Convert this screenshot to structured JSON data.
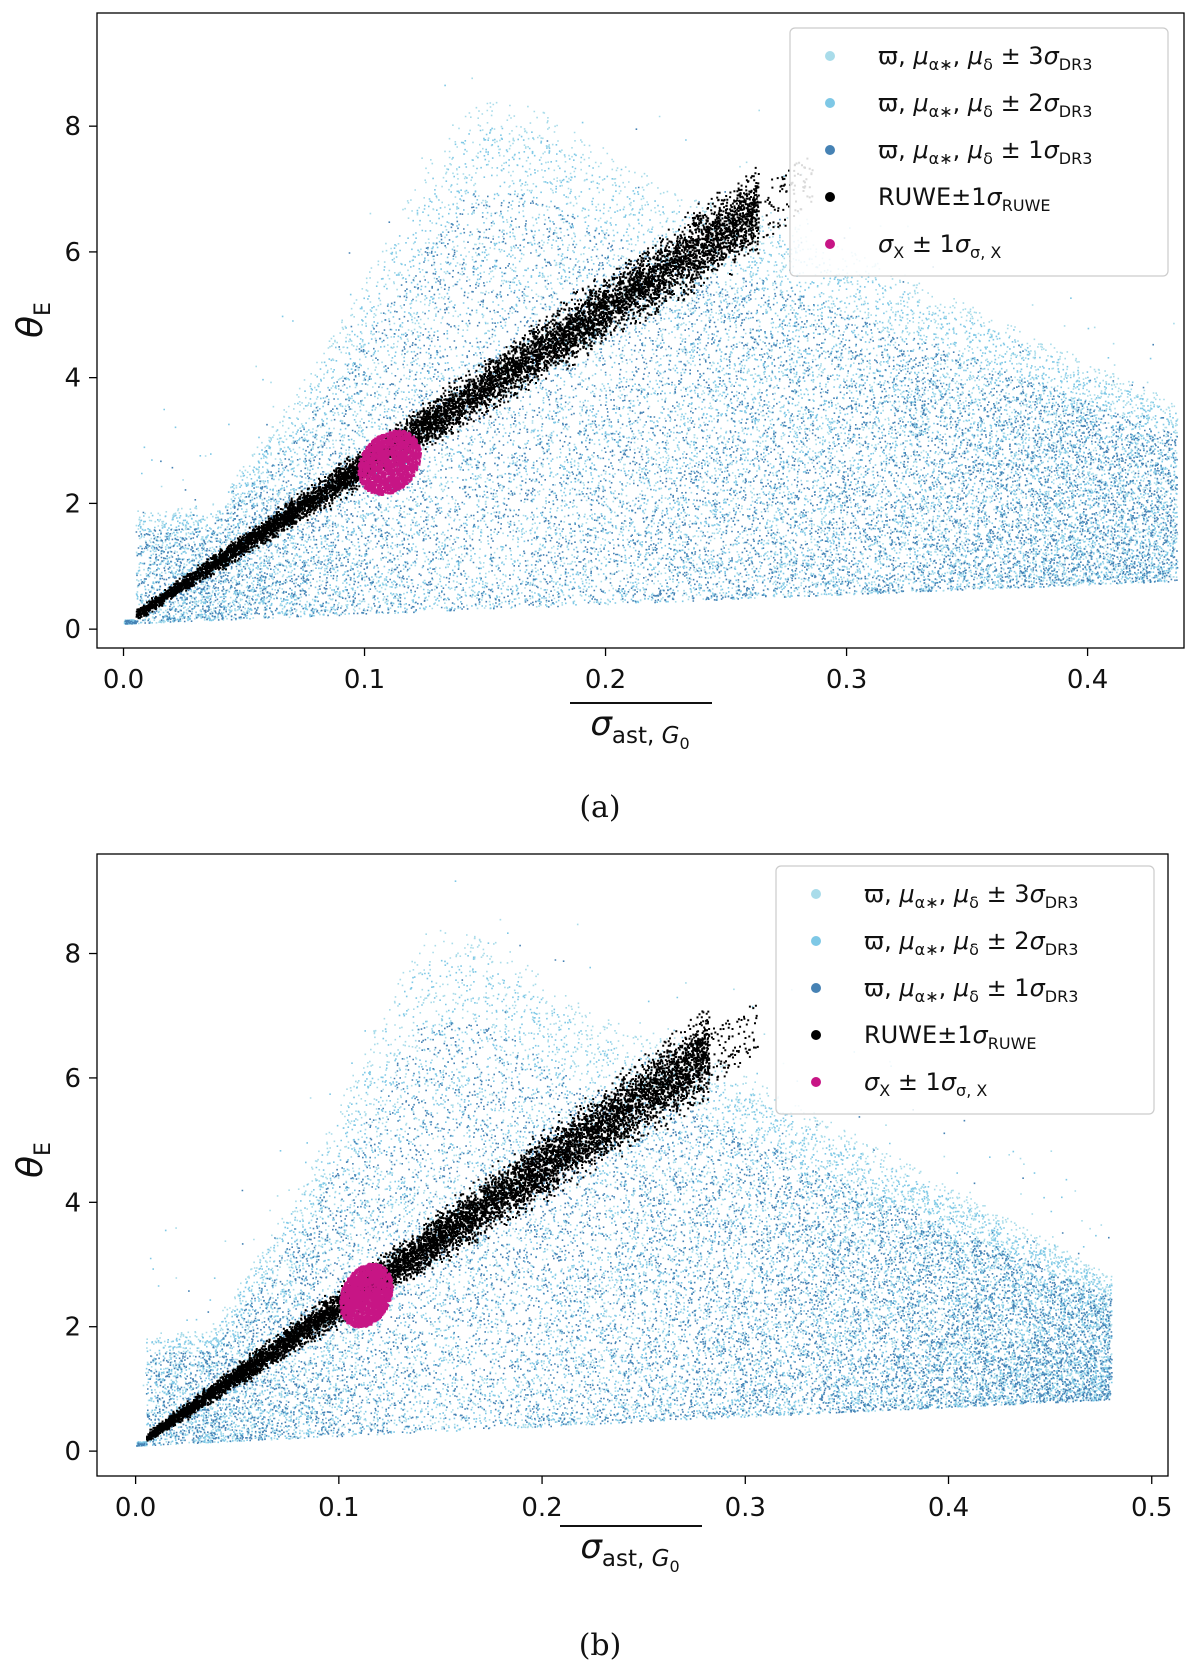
{
  "chart_data": [
    {
      "type": "scatter",
      "panel_caption": "(a)",
      "xlabel": "σast, G0",
      "ylabel": "θE",
      "xlim": [
        -0.011,
        0.44
      ],
      "ylim": [
        -0.3,
        9.8
      ],
      "x_ticks": [
        "0.0",
        "0.1",
        "0.2",
        "0.3",
        "0.4"
      ],
      "y_ticks": [
        "0",
        "2",
        "4",
        "6",
        "8"
      ],
      "legend_position": "top-right",
      "x_max_extent": 0.437,
      "pink_cluster": {
        "x_center": 0.11,
        "y_center": 2.65,
        "x_halfwidth": 0.013,
        "y_halfwidth": 0.5
      },
      "black_band_end": {
        "x": 0.28,
        "y": 7.1
      },
      "series": [
        {
          "name": "ϖ, μα*, μδ ± 3σDR3",
          "color": "#a9dcea"
        },
        {
          "name": "ϖ, μα*, μδ ± 2σDR3",
          "color": "#7ec8e6"
        },
        {
          "name": "ϖ, μα*, μδ ± 1σDR3",
          "color": "#4682b4"
        },
        {
          "name": "RUWE±1σRUWE",
          "color": "#000000"
        },
        {
          "name": "σX ± 1σσ,X",
          "color": "#c71585"
        }
      ]
    },
    {
      "type": "scatter",
      "panel_caption": "(b)",
      "xlabel": "σast, G0",
      "ylabel": "θE",
      "xlim": [
        -0.019,
        0.508
      ],
      "ylim": [
        -0.4,
        9.6
      ],
      "x_ticks": [
        "0.0",
        "0.1",
        "0.2",
        "0.3",
        "0.4",
        "0.5"
      ],
      "y_ticks": [
        "0",
        "2",
        "4",
        "6",
        "8"
      ],
      "legend_position": "top-right",
      "x_max_extent": 0.48,
      "pink_cluster": {
        "x_center": 0.113,
        "y_center": 2.5,
        "x_halfwidth": 0.013,
        "y_halfwidth": 0.5
      },
      "black_band_end": {
        "x": 0.3,
        "y": 6.8
      },
      "series": [
        {
          "name": "ϖ, μα*, μδ ± 3σDR3",
          "color": "#a9dcea"
        },
        {
          "name": "ϖ, μα*, μδ ± 2σDR3",
          "color": "#7ec8e6"
        },
        {
          "name": "ϖ, μα*, μδ ± 1σDR3",
          "color": "#4682b4"
        },
        {
          "name": "RUWE±1σRUWE",
          "color": "#000000"
        },
        {
          "name": "σX ± 1σσ,X",
          "color": "#c71585"
        }
      ]
    }
  ]
}
